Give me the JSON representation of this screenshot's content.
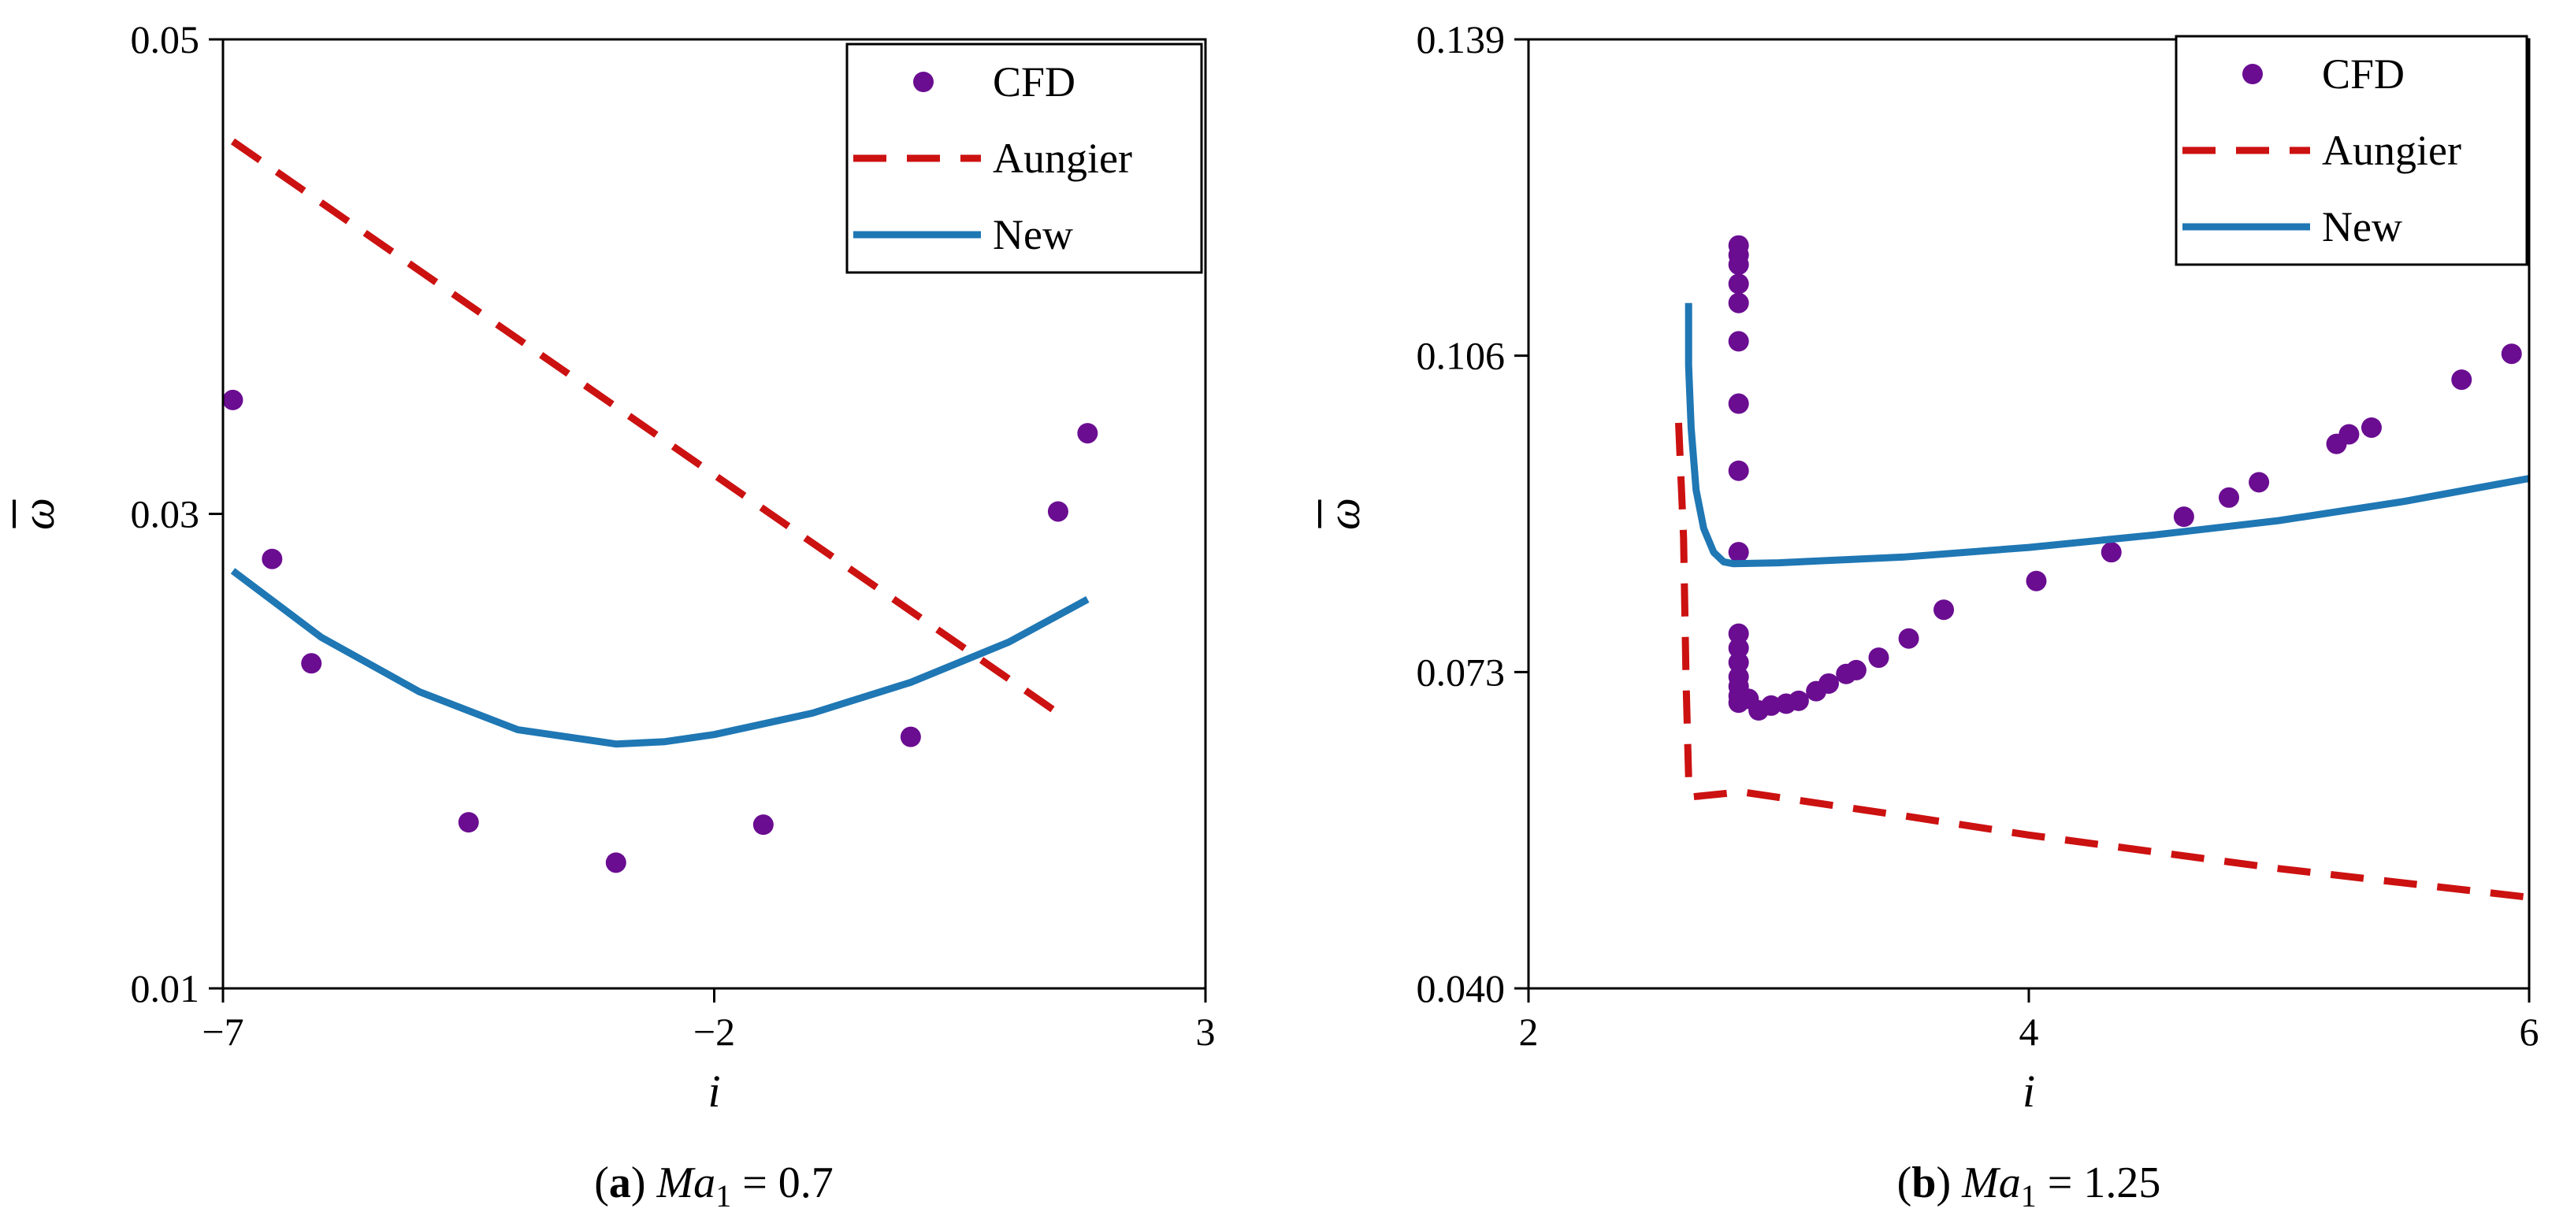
{
  "chart_data": [
    {
      "type": "scatter",
      "panel": "a",
      "caption": {
        "tag": "a",
        "var": "Ma",
        "sub": "1",
        "rest": " = 0.7"
      },
      "xlabel": "i",
      "ylabel": "ω",
      "xlim": [
        -7,
        3
      ],
      "ylim": [
        0.01,
        0.05
      ],
      "xticks": [
        -7,
        -2,
        3
      ],
      "xtick_labels": [
        "−7",
        "−2",
        "3"
      ],
      "yticks": [
        0.01,
        0.03,
        0.05
      ],
      "ytick_labels": [
        "0.01",
        "0.03",
        "0.05"
      ],
      "legend": {
        "position": "top-right",
        "entries": [
          "CFD",
          "Aungier",
          "New"
        ]
      },
      "colors": {
        "CFD": "#6a0d91",
        "Aungier": "#cc1111",
        "New": "#1f77b4"
      },
      "series": [
        {
          "name": "CFD",
          "style": "markers",
          "x": [
            -6.9,
            -6.5,
            -6.1,
            -4.5,
            -3.0,
            -1.5,
            0.0,
            1.5,
            1.8
          ],
          "y": [
            0.0348,
            0.0281,
            0.0237,
            0.017,
            0.0153,
            0.0169,
            0.0206,
            0.0301,
            0.0334
          ]
        },
        {
          "name": "Aungier",
          "style": "dashed",
          "x": [
            -6.9,
            1.5
          ],
          "y": [
            0.0457,
            0.0216
          ]
        },
        {
          "name": "New",
          "style": "solid",
          "x": [
            -6.9,
            -6.0,
            -5.0,
            -4.0,
            -3.0,
            -2.5,
            -2.0,
            -1.0,
            0.0,
            1.0,
            1.8
          ],
          "y": [
            0.0276,
            0.0248,
            0.0225,
            0.0209,
            0.0203,
            0.0204,
            0.0207,
            0.0216,
            0.0229,
            0.0246,
            0.0264
          ]
        }
      ]
    },
    {
      "type": "scatter",
      "panel": "b",
      "caption": {
        "tag": "b",
        "var": "Ma",
        "sub": "1",
        "rest": " = 1.25"
      },
      "xlabel": "i",
      "ylabel": "ω",
      "xlim": [
        2,
        6
      ],
      "ylim": [
        0.04,
        0.139
      ],
      "xticks": [
        2,
        4,
        6
      ],
      "xtick_labels": [
        "2",
        "4",
        "6"
      ],
      "yticks": [
        0.04,
        0.073,
        0.106,
        0.139
      ],
      "ytick_labels": [
        "0.040",
        "0.073",
        "0.106",
        "0.139"
      ],
      "legend": {
        "position": "top-right",
        "entries": [
          "CFD",
          "Aungier",
          "New"
        ]
      },
      "colors": {
        "CFD": "#6a0d91",
        "Aungier": "#cc1111",
        "New": "#1f77b4"
      },
      "series": [
        {
          "name": "CFD",
          "style": "markers",
          "x": [
            2.84,
            2.84,
            2.84,
            2.84,
            2.84,
            2.84,
            2.84,
            2.84,
            2.84,
            2.84,
            2.84,
            2.84,
            2.84,
            2.84,
            2.84,
            2.84,
            2.88,
            2.92,
            2.97,
            3.03,
            3.08,
            3.15,
            3.2,
            3.27,
            3.31,
            3.4,
            3.52,
            3.66,
            4.03,
            4.33,
            4.62,
            4.8,
            4.92,
            5.23,
            5.28,
            5.37,
            5.73,
            5.93
          ],
          "y": [
            0.1175,
            0.1165,
            0.1155,
            0.1135,
            0.1115,
            0.1075,
            0.101,
            0.094,
            0.0855,
            0.077,
            0.0755,
            0.074,
            0.0725,
            0.0715,
            0.0705,
            0.0698,
            0.0702,
            0.069,
            0.0695,
            0.0697,
            0.07,
            0.071,
            0.0718,
            0.0728,
            0.0732,
            0.0745,
            0.0765,
            0.0795,
            0.0825,
            0.0855,
            0.0892,
            0.0912,
            0.0928,
            0.0968,
            0.0978,
            0.0985,
            0.1035,
            0.1062
          ]
        },
        {
          "name": "Aungier",
          "style": "dashed",
          "x": [
            2.6,
            2.62,
            2.63,
            2.64,
            2.66,
            2.85,
            3.5,
            4.0,
            5.0,
            6.0
          ],
          "y": [
            0.099,
            0.087,
            0.072,
            0.062,
            0.06,
            0.0605,
            0.058,
            0.056,
            0.0525,
            0.0495
          ]
        },
        {
          "name": "New",
          "style": "solid",
          "x": [
            2.64,
            2.64,
            2.65,
            2.67,
            2.7,
            2.74,
            2.78,
            2.82,
            3.0,
            3.5,
            4.0,
            4.5,
            5.0,
            5.5,
            6.0
          ],
          "y": [
            0.1115,
            0.105,
            0.0985,
            0.092,
            0.088,
            0.0855,
            0.0845,
            0.0843,
            0.0844,
            0.085,
            0.086,
            0.0873,
            0.0888,
            0.0908,
            0.0932
          ]
        }
      ]
    }
  ]
}
